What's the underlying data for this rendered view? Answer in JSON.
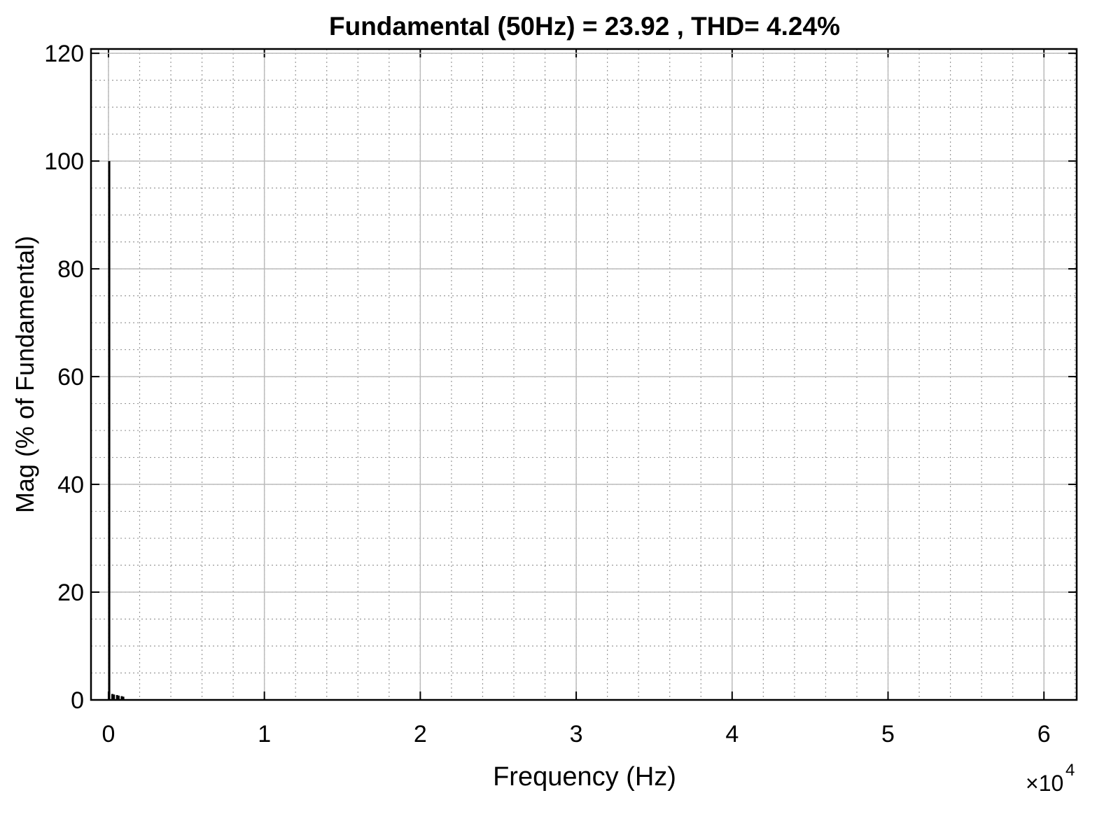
{
  "chart_data": {
    "type": "bar",
    "title": "Fundamental (50Hz) = 23.92 , THD= 4.24%",
    "x_label": "Frequency (Hz)",
    "y_label": "Mag (% of Fundamental)",
    "x_multiplier": "×10",
    "x_exponent": "4",
    "x": [
      50,
      250,
      350,
      550,
      650,
      850,
      950
    ],
    "values": [
      100,
      1.1,
      1.0,
      0.9,
      0.8,
      0.7,
      0.6
    ],
    "color": "#000000",
    "xlim": [
      -1120,
      62100
    ],
    "xticks": [
      {
        "value": 0,
        "label": "0"
      },
      {
        "value": 10000,
        "label": "1"
      },
      {
        "value": 20000,
        "label": "2"
      },
      {
        "value": 30000,
        "label": "3"
      },
      {
        "value": 40000,
        "label": "4"
      },
      {
        "value": 50000,
        "label": "5"
      },
      {
        "value": 60000,
        "label": "6"
      }
    ],
    "ylim": [
      0,
      120.8
    ],
    "yticks": [
      0,
      20,
      40,
      60,
      80,
      100,
      120
    ],
    "grid": true,
    "minor_grid": true,
    "x_minor_step": 2000,
    "y_minor_step": 5
  }
}
